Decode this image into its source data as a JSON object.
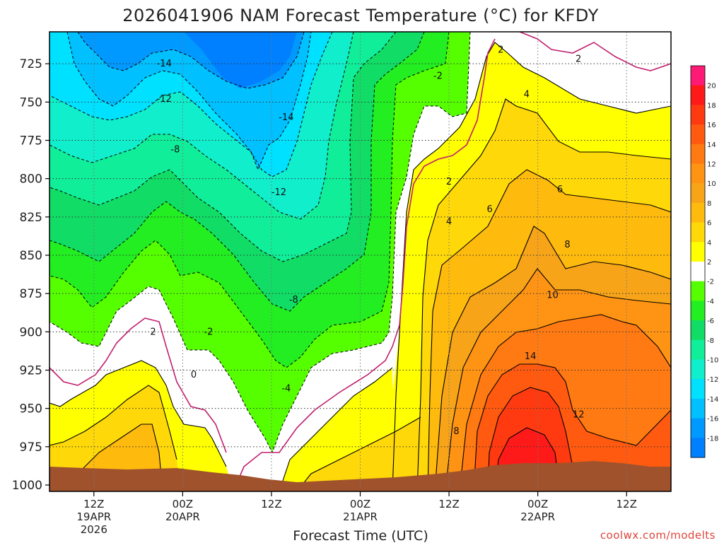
{
  "chart_data": {
    "type": "heatmap",
    "title": "2026041906 NAM Forecast Temperature (°C) for KFDY",
    "xlabel": "Forecast Time (UTC)",
    "ylabel": "",
    "credit": "coolwx.com/modelts",
    "y_axis": {
      "unit": "hPa",
      "reversed": true,
      "range": [
        1000,
        700
      ],
      "ticks": [
        725,
        750,
        775,
        800,
        825,
        850,
        875,
        900,
        925,
        950,
        975,
        1000
      ]
    },
    "x_axis": {
      "range_hours": [
        0,
        84
      ],
      "ticks": [
        {
          "hour": 6,
          "label": "12Z",
          "date": "19APR",
          "year": "2026"
        },
        {
          "hour": 18,
          "label": "00Z",
          "date": "20APR",
          "year": ""
        },
        {
          "hour": 30,
          "label": "12Z",
          "date": "",
          "year": ""
        },
        {
          "hour": 42,
          "label": "00Z",
          "date": "21APR",
          "year": ""
        },
        {
          "hour": 54,
          "label": "12Z",
          "date": "",
          "year": ""
        },
        {
          "hour": 66,
          "label": "00Z",
          "date": "22APR",
          "year": ""
        },
        {
          "hour": 78,
          "label": "12Z",
          "date": "",
          "year": ""
        }
      ]
    },
    "grid": true,
    "colorbar": {
      "position": "right",
      "levels": [
        20,
        18,
        16,
        14,
        12,
        10,
        8,
        6,
        4,
        2,
        -2,
        -4,
        -6,
        -8,
        -10,
        -12,
        -14,
        -16,
        -18
      ],
      "colors": [
        "#ff1a75",
        "#ff1a1a",
        "#ff3a10",
        "#ff5a10",
        "#ff7a12",
        "#ff9414",
        "#f7a419",
        "#ffba0e",
        "#ffd80a",
        "#ffff00",
        "#ffffff",
        "#55ff00",
        "#22ee22",
        "#11dd66",
        "#11ee99",
        "#11eecc",
        "#00e0ff",
        "#00c0ff",
        "#0099ff",
        "#0080ff"
      ]
    },
    "zero_line_color": "#c0206f",
    "ground_color": "#a0522d",
    "contour_labels": [
      {
        "text": "-14",
        "x": 15.5,
        "p": 725
      },
      {
        "text": "-12",
        "x": 15.5,
        "p": 748
      },
      {
        "text": "-8",
        "x": 17.0,
        "p": 781
      },
      {
        "text": "-14",
        "x": 32.0,
        "p": 760
      },
      {
        "text": "-12",
        "x": 31.0,
        "p": 809
      },
      {
        "text": "-8",
        "x": 33.0,
        "p": 879
      },
      {
        "text": "-4",
        "x": 32.0,
        "p": 937
      },
      {
        "text": "-2",
        "x": 21.5,
        "p": 900
      },
      {
        "text": "2",
        "x": 14.0,
        "p": 900
      },
      {
        "text": "0",
        "x": 19.5,
        "p": 928
      },
      {
        "text": "-2",
        "x": 52.5,
        "p": 733
      },
      {
        "text": "2",
        "x": 61.0,
        "p": 716
      },
      {
        "text": "2",
        "x": 71.5,
        "p": 722
      },
      {
        "text": "4",
        "x": 64.5,
        "p": 745
      },
      {
        "text": "2",
        "x": 54.0,
        "p": 802
      },
      {
        "text": "4",
        "x": 54.0,
        "p": 828
      },
      {
        "text": "6",
        "x": 59.5,
        "p": 820
      },
      {
        "text": "6",
        "x": 69.0,
        "p": 807
      },
      {
        "text": "8",
        "x": 70.0,
        "p": 843
      },
      {
        "text": "10",
        "x": 68.0,
        "p": 876
      },
      {
        "text": "14",
        "x": 65.0,
        "p": 916
      },
      {
        "text": "12",
        "x": 71.5,
        "p": 954
      },
      {
        "text": "8",
        "x": 55.0,
        "p": 965
      }
    ]
  }
}
